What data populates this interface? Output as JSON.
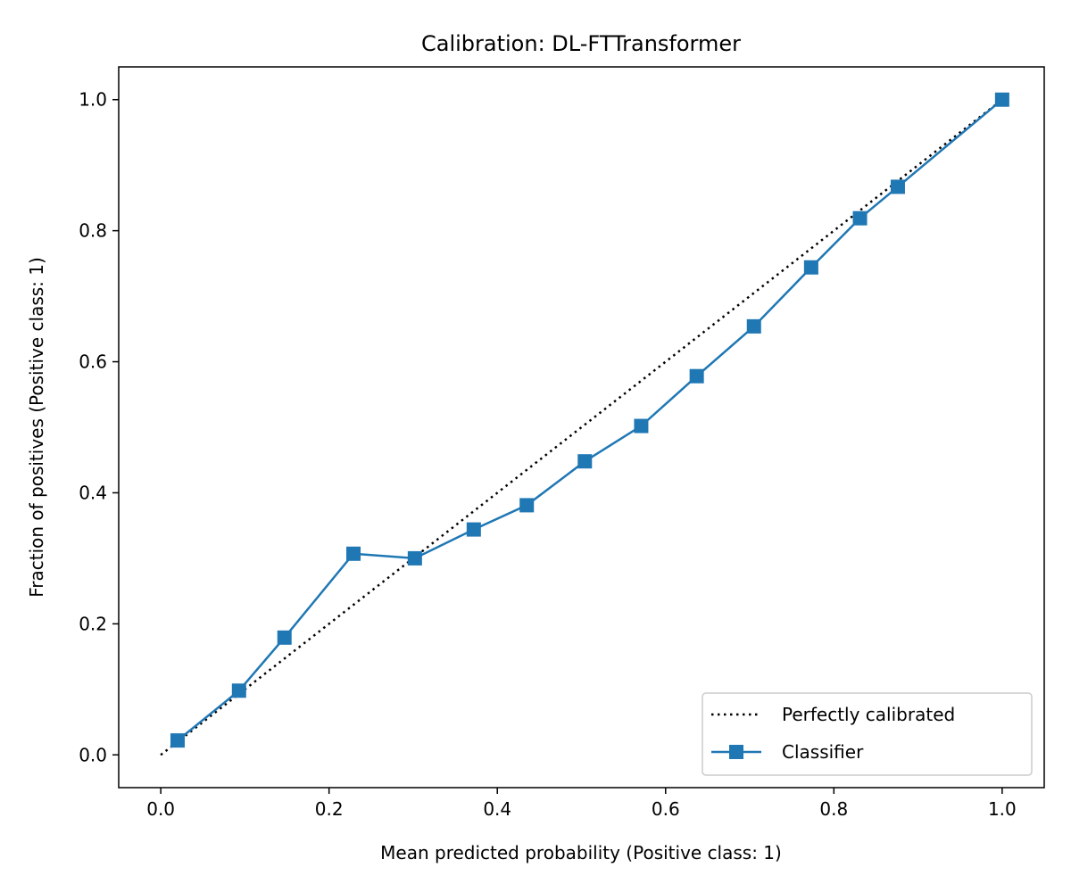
{
  "chart_data": {
    "type": "line",
    "title": "Calibration: DL-FTTransformer",
    "xlabel": "Mean predicted probability (Positive class: 1)",
    "ylabel": "Fraction of positives (Positive class: 1)",
    "xlim": [
      -0.05,
      1.05
    ],
    "ylim": [
      -0.05,
      1.05
    ],
    "xticks": [
      0.0,
      0.2,
      0.4,
      0.6,
      0.8,
      1.0
    ],
    "xtick_labels": [
      "0.0",
      "0.2",
      "0.4",
      "0.6",
      "0.8",
      "1.0"
    ],
    "yticks": [
      0.0,
      0.2,
      0.4,
      0.6,
      0.8,
      1.0
    ],
    "ytick_labels": [
      "0.0",
      "0.2",
      "0.4",
      "0.6",
      "0.8",
      "1.0"
    ],
    "grid": false,
    "legend_position": "lower-right",
    "series": [
      {
        "name": "Perfectly calibrated",
        "style": "dotted",
        "marker": "none",
        "color": "#000000",
        "x": [
          0.0,
          1.0
        ],
        "y": [
          0.0,
          1.0
        ]
      },
      {
        "name": "Classifier",
        "style": "solid",
        "marker": "square",
        "color": "#1f77b4",
        "x": [
          0.02,
          0.093,
          0.147,
          0.229,
          0.302,
          0.372,
          0.435,
          0.504,
          0.571,
          0.637,
          0.705,
          0.773,
          0.831,
          0.876,
          1.0
        ],
        "y": [
          0.022,
          0.098,
          0.179,
          0.307,
          0.3,
          0.344,
          0.381,
          0.448,
          0.502,
          0.578,
          0.654,
          0.744,
          0.819,
          0.867,
          1.0
        ]
      }
    ]
  }
}
